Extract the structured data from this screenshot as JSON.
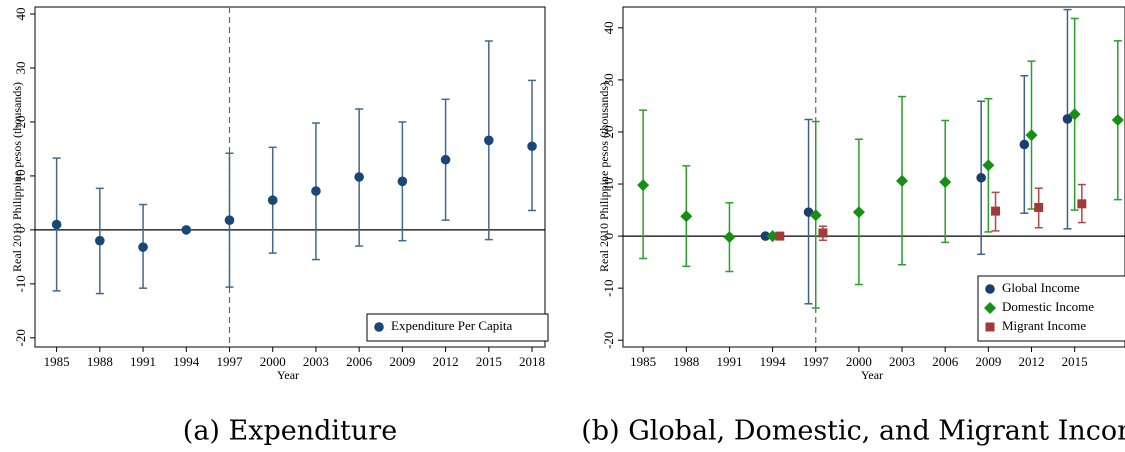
{
  "chart_data": [
    {
      "type": "errorbar",
      "caption": "(a) Expenditure",
      "xlabel": "Year",
      "ylabel": "Real 2010 Philippine pesos (thousands)",
      "xlim": [
        1983.5,
        2018.9
      ],
      "ylim": [
        -21.7,
        41.3
      ],
      "xticks": [
        1985,
        1988,
        1991,
        1994,
        1997,
        2000,
        2003,
        2006,
        2009,
        2012,
        2015,
        2018
      ],
      "yticks": [
        -20,
        -10,
        0,
        10,
        20,
        30,
        40
      ],
      "vline": 1997,
      "hline": 0,
      "legend": "lower right",
      "series": [
        {
          "name": "Expenditure Per Capita",
          "color": "#1a4778",
          "bar_color": "#46678c",
          "marker": "circle",
          "x": [
            1985,
            1988,
            1991,
            1994,
            1997,
            2000,
            2003,
            2006,
            2009,
            2012,
            2015,
            2018
          ],
          "values": [
            1.0,
            -2.0,
            -3.2,
            0,
            1.8,
            5.5,
            7.2,
            9.8,
            9.0,
            13.0,
            16.6,
            15.5
          ],
          "ci_low": [
            -11.3,
            -11.8,
            -10.8,
            null,
            -10.6,
            -4.3,
            -5.5,
            -3.0,
            -2.0,
            1.8,
            -1.8,
            3.6
          ],
          "ci_high": [
            13.3,
            7.7,
            4.7,
            null,
            14.2,
            15.3,
            19.8,
            22.4,
            20.0,
            24.2,
            35.0,
            27.7
          ]
        }
      ]
    },
    {
      "type": "errorbar",
      "caption": "(b) Global, Domestic, and Migrant Income",
      "xlabel": "Year",
      "ylabel": "Real 2010 Philippine pesos (thousands)",
      "xlim": [
        1983.6,
        2018.5
      ],
      "ylim": [
        -21.3,
        44
      ],
      "xticks": [
        1985,
        1988,
        1991,
        1994,
        1997,
        2000,
        2003,
        2006,
        2009,
        2012,
        2015
      ],
      "yticks": [
        -20,
        -10,
        0,
        10,
        20,
        30,
        40
      ],
      "vline": 1997,
      "hline": 0,
      "legend": "lower right",
      "series": [
        {
          "name": "Global Income",
          "color": "#1a3f6e",
          "bar_color": "#3e6188",
          "marker": "circle",
          "x": [
            1993.5,
            1996.5,
            2008.5,
            2011.5,
            2014.5
          ],
          "values": [
            0,
            4.6,
            11.2,
            17.6,
            22.5
          ],
          "ci_low": [
            null,
            -13.0,
            -3.5,
            4.4,
            1.4
          ],
          "ci_high": [
            null,
            22.4,
            25.9,
            30.8,
            43.5
          ]
        },
        {
          "name": "Domestic Income",
          "color": "#159015",
          "bar_color": "#2c9e2c",
          "marker": "diamond",
          "x": [
            1985,
            1988,
            1991,
            1994,
            1997,
            2000,
            2003,
            2006,
            2009,
            2012,
            2015,
            2018
          ],
          "values": [
            9.8,
            3.8,
            -0.2,
            0,
            4.0,
            4.6,
            10.6,
            10.4,
            13.6,
            19.4,
            23.4,
            22.3
          ],
          "ci_low": [
            -4.3,
            -5.8,
            -6.8,
            null,
            -13.8,
            -9.3,
            -5.5,
            -1.2,
            0.8,
            5.2,
            5.0,
            7.0
          ],
          "ci_high": [
            24.2,
            13.5,
            6.4,
            null,
            22.0,
            18.6,
            26.8,
            22.2,
            26.4,
            33.6,
            41.8,
            37.5
          ]
        },
        {
          "name": "Migrant Income",
          "color": "#a33a3a",
          "bar_color": "#b04848",
          "marker": "square",
          "x": [
            1994.5,
            1997.5,
            2009.5,
            2012.5,
            2015.5
          ],
          "values": [
            0,
            0.6,
            4.8,
            5.5,
            6.2
          ],
          "ci_low": [
            null,
            -0.8,
            1.0,
            1.6,
            2.6
          ],
          "ci_high": [
            null,
            1.9,
            8.4,
            9.2,
            9.9
          ]
        }
      ]
    }
  ]
}
